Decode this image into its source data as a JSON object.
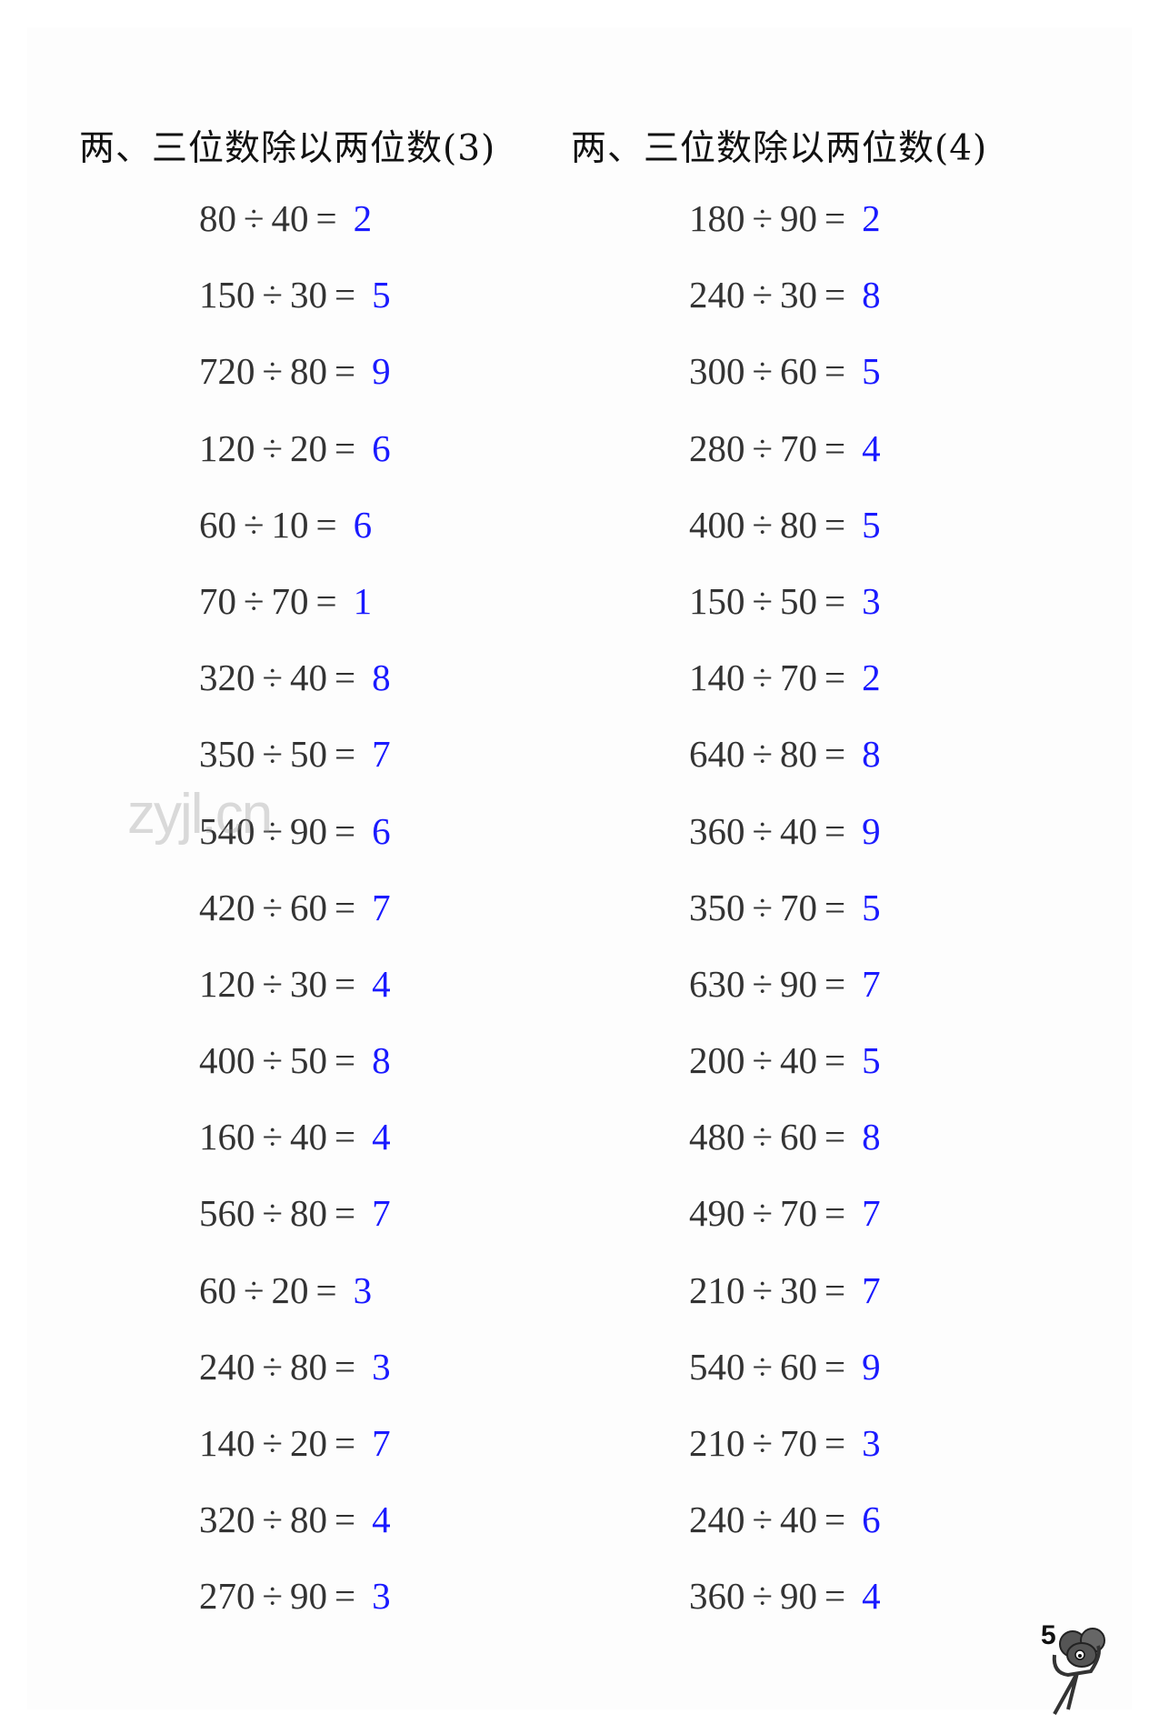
{
  "colors": {
    "answer": "#1a1aff",
    "text": "#333333"
  },
  "watermark": "zyjl.cn",
  "page_number": "5",
  "sections": [
    {
      "title": "两、三位数除以两位数(3)",
      "rows": [
        {
          "dividend": "80",
          "divisor": "40",
          "answer": "2"
        },
        {
          "dividend": "150",
          "divisor": "30",
          "answer": "5"
        },
        {
          "dividend": "720",
          "divisor": "80",
          "answer": "9"
        },
        {
          "dividend": "120",
          "divisor": "20",
          "answer": "6"
        },
        {
          "dividend": "60",
          "divisor": "10",
          "answer": "6"
        },
        {
          "dividend": "70",
          "divisor": "70",
          "answer": "1"
        },
        {
          "dividend": "320",
          "divisor": "40",
          "answer": "8"
        },
        {
          "dividend": "350",
          "divisor": "50",
          "answer": "7"
        },
        {
          "dividend": "540",
          "divisor": "90",
          "answer": "6"
        },
        {
          "dividend": "420",
          "divisor": "60",
          "answer": "7"
        },
        {
          "dividend": "120",
          "divisor": "30",
          "answer": "4"
        },
        {
          "dividend": "400",
          "divisor": "50",
          "answer": "8"
        },
        {
          "dividend": "160",
          "divisor": "40",
          "answer": "4"
        },
        {
          "dividend": "560",
          "divisor": "80",
          "answer": "7"
        },
        {
          "dividend": "60",
          "divisor": "20",
          "answer": "3"
        },
        {
          "dividend": "240",
          "divisor": "80",
          "answer": "3"
        },
        {
          "dividend": "140",
          "divisor": "20",
          "answer": "7"
        },
        {
          "dividend": "320",
          "divisor": "80",
          "answer": "4"
        },
        {
          "dividend": "270",
          "divisor": "90",
          "answer": "3"
        }
      ]
    },
    {
      "title": "两、三位数除以两位数(4)",
      "rows": [
        {
          "dividend": "180",
          "divisor": "90",
          "answer": "2"
        },
        {
          "dividend": "240",
          "divisor": "30",
          "answer": "8"
        },
        {
          "dividend": "300",
          "divisor": "60",
          "answer": "5"
        },
        {
          "dividend": "280",
          "divisor": "70",
          "answer": "4"
        },
        {
          "dividend": "400",
          "divisor": "80",
          "answer": "5"
        },
        {
          "dividend": "150",
          "divisor": "50",
          "answer": "3"
        },
        {
          "dividend": "140",
          "divisor": "70",
          "answer": "2"
        },
        {
          "dividend": "640",
          "divisor": "80",
          "answer": "8"
        },
        {
          "dividend": "360",
          "divisor": "40",
          "answer": "9"
        },
        {
          "dividend": "350",
          "divisor": "70",
          "answer": "5"
        },
        {
          "dividend": "630",
          "divisor": "90",
          "answer": "7"
        },
        {
          "dividend": "200",
          "divisor": "40",
          "answer": "5"
        },
        {
          "dividend": "480",
          "divisor": "60",
          "answer": "8"
        },
        {
          "dividend": "490",
          "divisor": "70",
          "answer": "7"
        },
        {
          "dividend": "210",
          "divisor": "30",
          "answer": "7"
        },
        {
          "dividend": "540",
          "divisor": "60",
          "answer": "9"
        },
        {
          "dividend": "210",
          "divisor": "70",
          "answer": "3"
        },
        {
          "dividend": "240",
          "divisor": "40",
          "answer": "6"
        },
        {
          "dividend": "360",
          "divisor": "90",
          "answer": "4"
        }
      ]
    }
  ]
}
